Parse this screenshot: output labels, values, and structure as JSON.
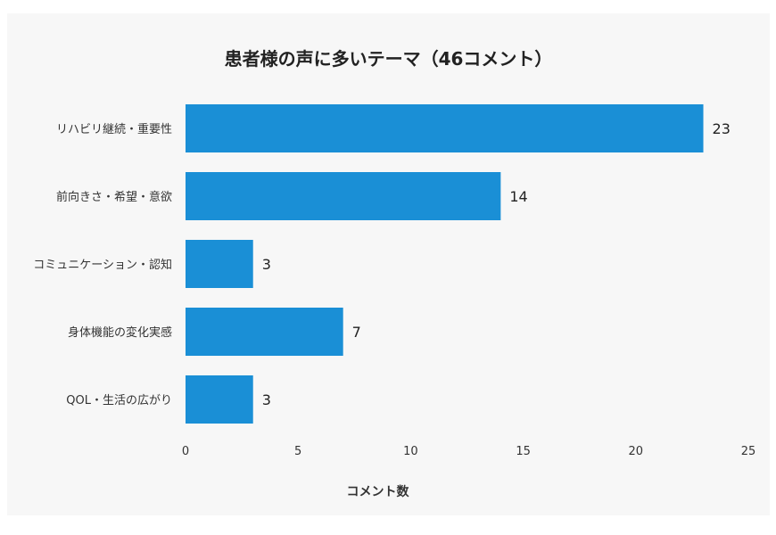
{
  "chart_data": {
    "type": "bar",
    "orientation": "horizontal",
    "title": "患者様の声に多いテーマ（46コメント）",
    "categories": [
      "リハビリ継続・重要性",
      "前向きさ・希望・意欲",
      "コミュニケーション・認知",
      "身体機能の変化実感",
      "QOL・生活の広がり"
    ],
    "values": [
      23,
      14,
      3,
      7,
      3
    ],
    "xlabel": "コメント数",
    "ylabel": "",
    "xlim": [
      0,
      25
    ],
    "xticks": [
      0,
      5,
      10,
      15,
      20,
      25
    ],
    "grid": false,
    "legend": "none",
    "bar_color": "#1a8fd6",
    "background_color": "#f7f7f7"
  }
}
